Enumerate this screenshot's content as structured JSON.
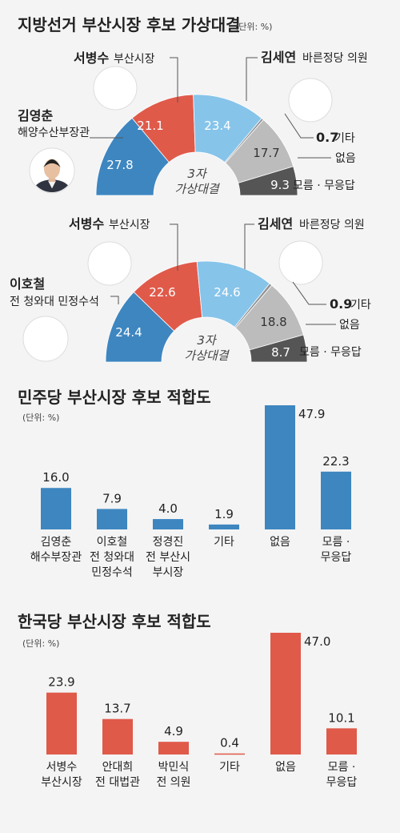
{
  "colors": {
    "blue": "#3e86c0",
    "red": "#e05a4a",
    "lightblue": "#86c4ea",
    "lightgray": "#bcbcbc",
    "gray": "#929292",
    "darkgray": "#555555",
    "text": "#222222"
  },
  "chart_data": [
    {
      "type": "pie",
      "subtype": "semicircle-donut",
      "title": "지방선거 부산시장 후보 가상대결",
      "unit": "(단위: %)",
      "center_label": [
        "3자",
        "가상대결"
      ],
      "segments": [
        {
          "value": 27.8,
          "label": "27.8",
          "color": "blue"
        },
        {
          "value": 21.1,
          "label": "21.1",
          "color": "red"
        },
        {
          "value": 23.4,
          "label": "23.4",
          "color": "lightblue"
        },
        {
          "value": 0.7,
          "label": "0.7",
          "color": "gray"
        },
        {
          "value": 17.7,
          "label": "17.7",
          "color": "lightgray"
        },
        {
          "value": 9.3,
          "label": "9.3",
          "color": "darkgray"
        }
      ],
      "annotations": [
        {
          "name": "김영춘",
          "role": "해양수산부장관"
        },
        {
          "name": "서병수",
          "role": "부산시장"
        },
        {
          "name": "김세연",
          "role": "바른정당 의원"
        },
        {
          "value": "0.7",
          "label": "기타"
        },
        {
          "label": "없음"
        },
        {
          "label": "모름 · 무응답"
        }
      ]
    },
    {
      "type": "pie",
      "subtype": "semicircle-donut",
      "center_label": [
        "3자",
        "가상대결"
      ],
      "segments": [
        {
          "value": 24.4,
          "label": "24.4",
          "color": "blue"
        },
        {
          "value": 22.6,
          "label": "22.6",
          "color": "red"
        },
        {
          "value": 24.6,
          "label": "24.6",
          "color": "lightblue"
        },
        {
          "value": 0.9,
          "label": "0.9",
          "color": "gray"
        },
        {
          "value": 18.8,
          "label": "18.8",
          "color": "lightgray"
        },
        {
          "value": 8.7,
          "label": "8.7",
          "color": "darkgray"
        }
      ],
      "annotations": [
        {
          "name": "이호철",
          "role": "전 청와대 민정수석"
        },
        {
          "name": "서병수",
          "role": "부산시장"
        },
        {
          "name": "김세연",
          "role": "바른정당 의원"
        },
        {
          "value": "0.9",
          "label": "기타"
        },
        {
          "label": "없음"
        },
        {
          "label": "모름 · 무응답"
        }
      ]
    },
    {
      "type": "bar",
      "title": "민주당 부산시장 후보 적합도",
      "unit": "(단위: %)",
      "color": "blue",
      "categories": [
        [
          "김영춘",
          "해수부장관"
        ],
        [
          "이호철",
          "전 청와대",
          "민정수석"
        ],
        [
          "정경진",
          "전 부산시",
          "부시장"
        ],
        [
          "기타"
        ],
        [
          "없음"
        ],
        [
          "모름 ·",
          "무응답"
        ]
      ],
      "values": [
        16.0,
        7.9,
        4.0,
        1.9,
        47.9,
        22.3
      ],
      "value_labels": [
        "16.0",
        "7.9",
        "4.0",
        "1.9",
        "47.9",
        "22.3"
      ]
    },
    {
      "type": "bar",
      "title": "한국당 부산시장 후보 적합도",
      "unit": "(단위: %)",
      "color": "red",
      "categories": [
        [
          "서병수",
          "부산시장"
        ],
        [
          "안대희",
          "전 대법관"
        ],
        [
          "박민식",
          "전 의원"
        ],
        [
          "기타"
        ],
        [
          "없음"
        ],
        [
          "모름 ·",
          "무응답"
        ]
      ],
      "values": [
        23.9,
        13.7,
        4.9,
        0.4,
        47.0,
        10.1
      ],
      "value_labels": [
        "23.9",
        "13.7",
        "4.9",
        "0.4",
        "47.0",
        "10.1"
      ]
    }
  ]
}
